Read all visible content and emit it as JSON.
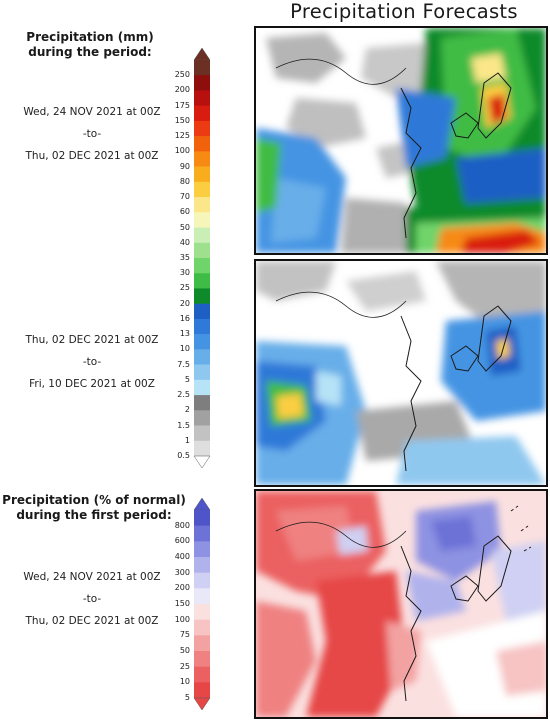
{
  "title": "Precipitation Forecasts",
  "legend_amount": {
    "heading_line1": "Precipitation (mm)",
    "heading_line2": "during the period:",
    "levels": [
      "250",
      "200",
      "175",
      "150",
      "125",
      "100",
      "90",
      "80",
      "70",
      "60",
      "50",
      "40",
      "35",
      "30",
      "25",
      "20",
      "16",
      "13",
      "10",
      "7.5",
      "5",
      "2.5",
      "2",
      "1.5",
      "1",
      "0.5"
    ],
    "colors": [
      "#6b2f24",
      "#8e0d0d",
      "#b80f0f",
      "#d91c10",
      "#ec3a12",
      "#f2620c",
      "#f78a12",
      "#f9ad1d",
      "#fbce42",
      "#fbe789",
      "#f7f6ba",
      "#c9efb6",
      "#9fe08f",
      "#6fd46a",
      "#3fbc45",
      "#0e8a2a",
      "#1e5fc4",
      "#2f79d8",
      "#4594e3",
      "#68aee9",
      "#8fc8ef",
      "#b7e3f7",
      "#7e7e7e",
      "#a1a1a1",
      "#c2c2c2",
      "#dedede"
    ]
  },
  "legend_percent": {
    "heading_line1": "Precipitation (% of normal)",
    "heading_line2": "during the first period:",
    "levels": [
      "800",
      "600",
      "400",
      "300",
      "200",
      "150",
      "100",
      "75",
      "50",
      "25",
      "10",
      "5"
    ],
    "colors": [
      "#4e55c8",
      "#6c72d6",
      "#8e92e2",
      "#b0b2ec",
      "#cfd0f3",
      "#e8e8f9",
      "#fbe0e0",
      "#f7c3c3",
      "#f3a2a2",
      "#ef8181",
      "#eb6161",
      "#e64646"
    ]
  },
  "periods": {
    "first": {
      "start": "Wed, 24 NOV 2021 at 00Z",
      "sep": "-to-",
      "end": "Thu, 02 DEC 2021 at 00Z"
    },
    "second": {
      "start": "Thu, 02 DEC 2021 at 00Z",
      "sep": "-to-",
      "end": "Fri, 10 DEC 2021 at 00Z"
    },
    "third": {
      "start": "Wed, 24 NOV 2021 at 00Z",
      "sep": "-to-",
      "end": "Thu, 02 DEC 2021 at 00Z"
    }
  },
  "maps": {
    "land_color": "#ffffff",
    "coast_color": "#1a1a1a"
  }
}
